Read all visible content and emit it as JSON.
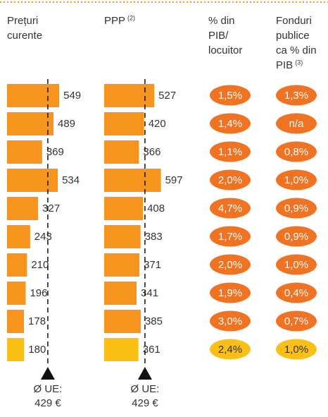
{
  "headers": {
    "current": [
      "Prețuri",
      "curente"
    ],
    "ppp": {
      "text": "PPP",
      "note": "(2)"
    },
    "gdp": [
      "% din",
      "PIB/",
      "locuitor"
    ],
    "public": {
      "lines": [
        "Fonduri",
        "publice",
        "ca % din",
        "PIB"
      ],
      "note": "(3)"
    }
  },
  "scale_max": 600,
  "colors": {
    "bar": "#f7941d",
    "oval": "#ef7322",
    "highlight": "#fbbf16"
  },
  "rows": [
    {
      "current": 549,
      "ppp": 527,
      "gdp": "1,5%",
      "public": "1,3%"
    },
    {
      "current": 489,
      "ppp": 420,
      "gdp": "1,4%",
      "public": "n/a"
    },
    {
      "current": 369,
      "ppp": 366,
      "gdp": "1,1%",
      "public": "0,8%"
    },
    {
      "current": 534,
      "ppp": 597,
      "gdp": "2,0%",
      "public": "1,0%"
    },
    {
      "current": 327,
      "ppp": 408,
      "gdp": "4,7%",
      "public": "0,9%"
    },
    {
      "current": 243,
      "ppp": 383,
      "gdp": "1,7%",
      "public": "0,9%"
    },
    {
      "current": 210,
      "ppp": 371,
      "gdp": "2,0%",
      "public": "1,0%"
    },
    {
      "current": 196,
      "ppp": 341,
      "gdp": "1,9%",
      "public": "0,4%"
    },
    {
      "current": 178,
      "ppp": 385,
      "gdp": "3,0%",
      "public": "0,7%"
    },
    {
      "current": 180,
      "ppp": 361,
      "gdp": "2,4%",
      "public": "1,0%",
      "highlight": true
    }
  ],
  "average": {
    "value": 429,
    "label": "Ø UE:",
    "value_label": "429 €"
  }
}
